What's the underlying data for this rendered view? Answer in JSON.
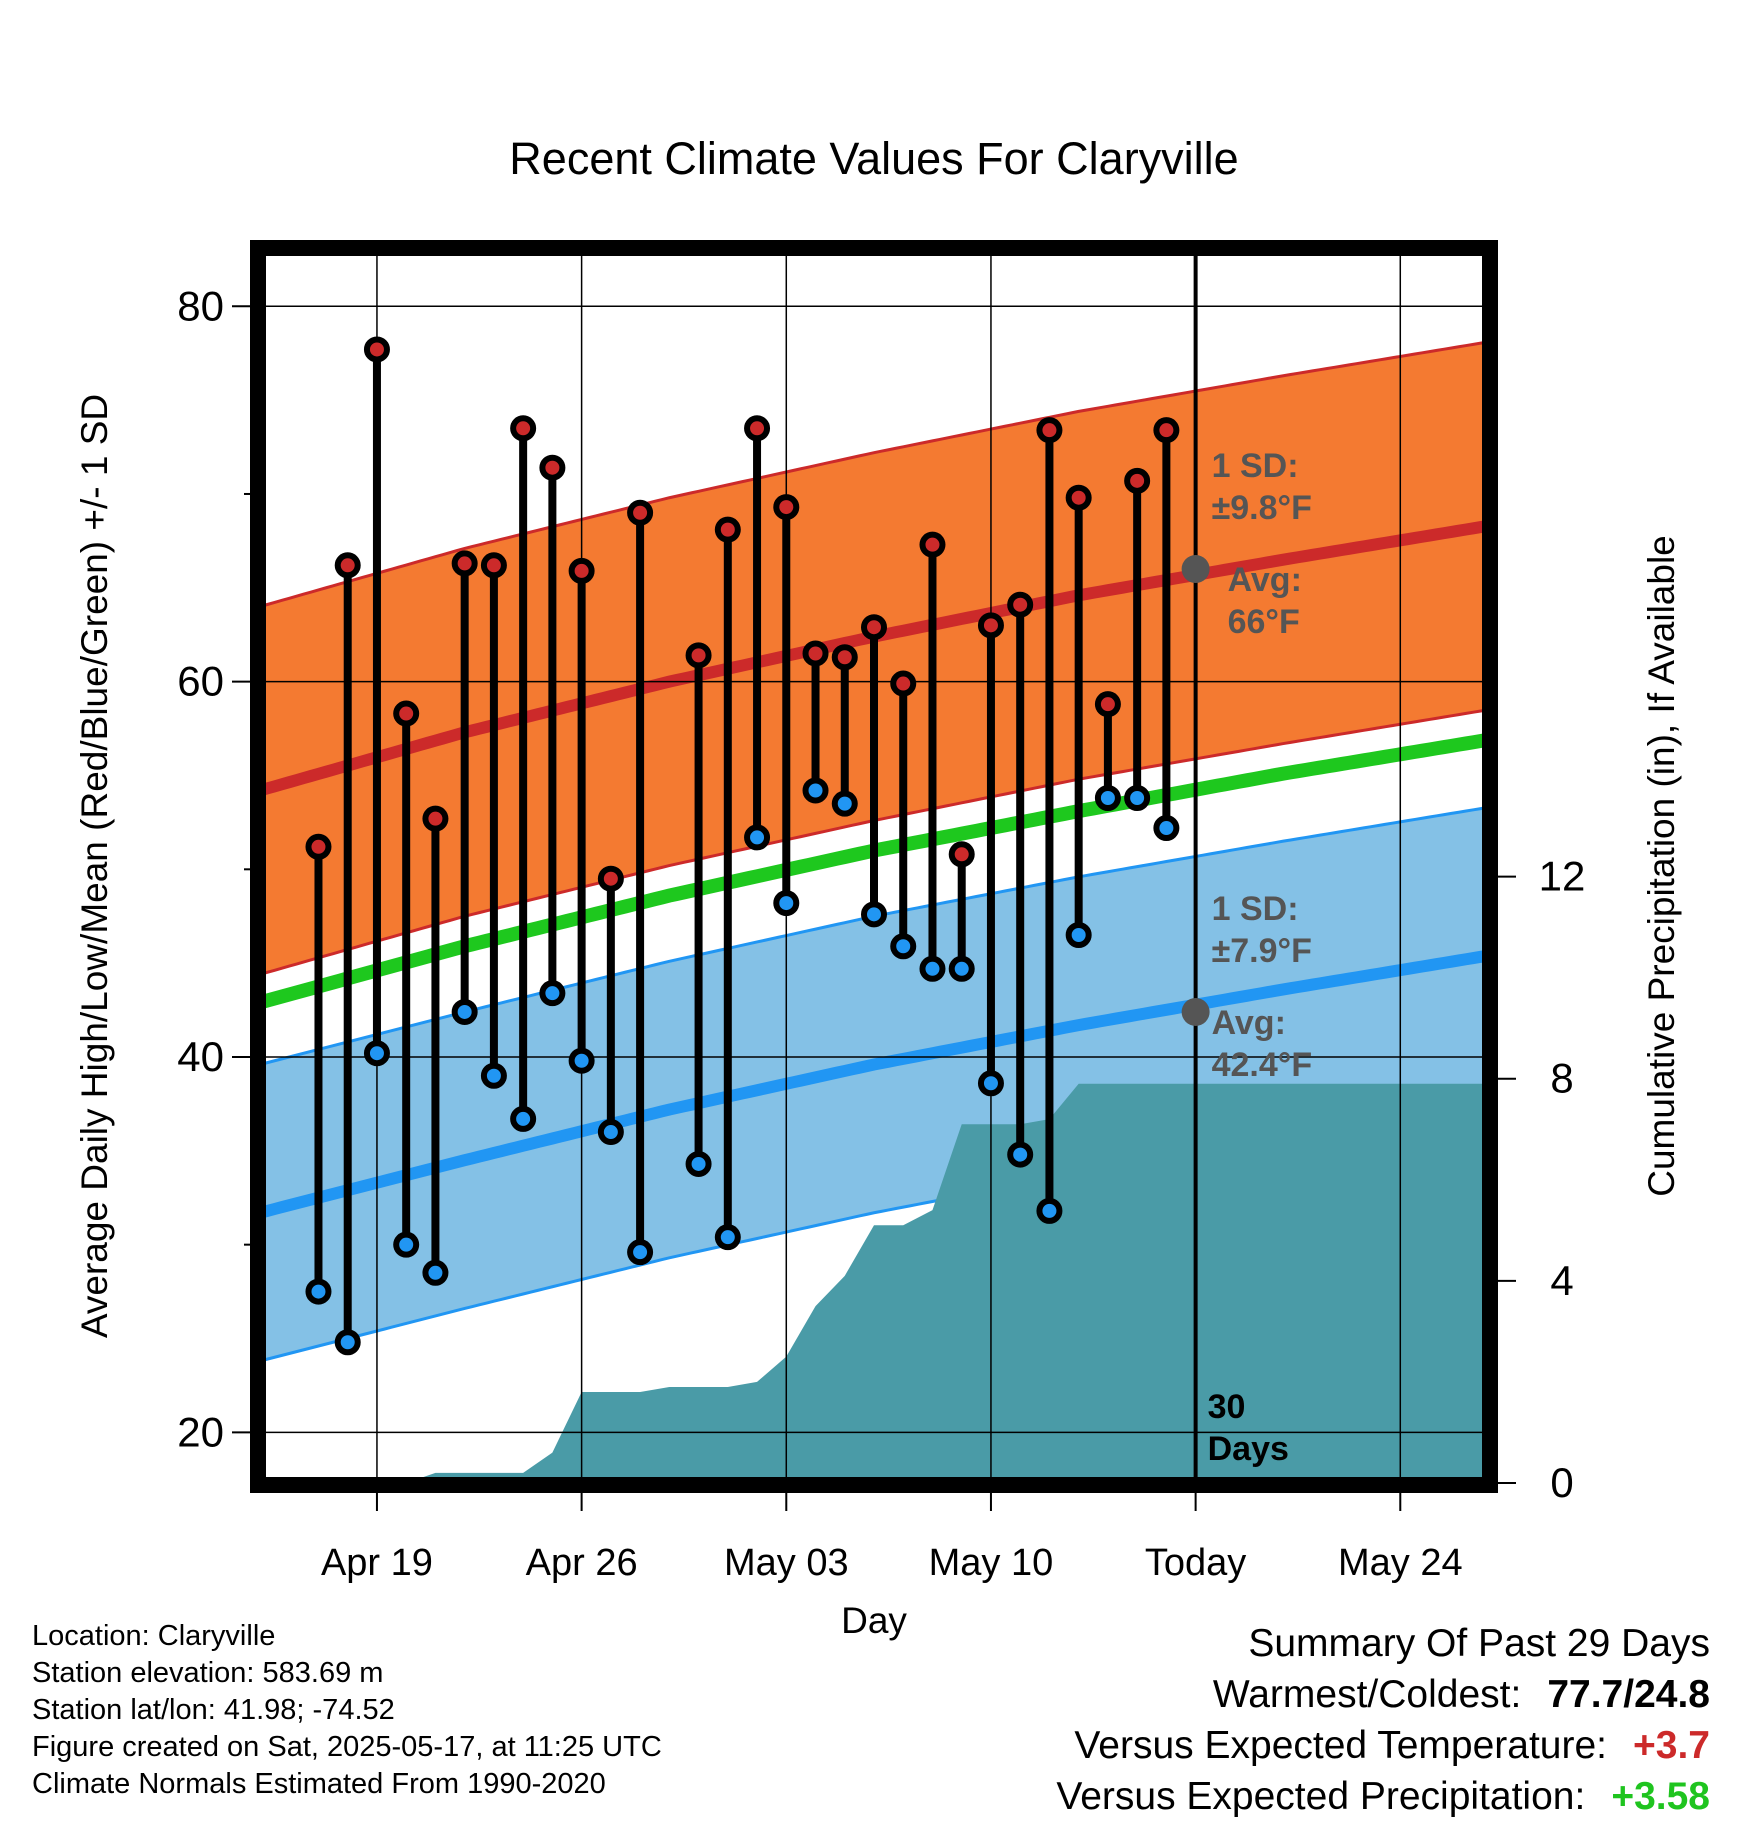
{
  "chart_data": {
    "type": "line",
    "title": "Recent Climate Values For Claryville",
    "xlabel": "Day",
    "ylabel": "Average Daily High/Low/Mean (Red/Blue/Green) +/- 1 SD",
    "y2label": "Cumulative Precipitation (in), If Available",
    "ylim": [
      17.3,
      83.0
    ],
    "y2lim": [
      0,
      24.4
    ],
    "yticks": [
      20,
      40,
      60,
      80
    ],
    "y2ticks": [
      0,
      4,
      8,
      12
    ],
    "xlim": [
      "2025-04-15",
      "2025-05-27"
    ],
    "xticks": [
      {
        "date": "2025-04-19",
        "label": "Apr 19"
      },
      {
        "date": "2025-04-26",
        "label": "Apr 26"
      },
      {
        "date": "2025-05-03",
        "label": "May 03"
      },
      {
        "date": "2025-05-10",
        "label": "May 10"
      },
      {
        "date": "2025-05-17",
        "label": "Today"
      },
      {
        "date": "2025-05-24",
        "label": "May 24"
      }
    ],
    "grid": true,
    "normals": {
      "dates": [
        "2025-04-15",
        "2025-04-22",
        "2025-04-29",
        "2025-05-06",
        "2025-05-13",
        "2025-05-20",
        "2025-05-27"
      ],
      "avg_high": [
        54.2,
        57.3,
        60.0,
        62.4,
        64.6,
        66.5,
        68.3
      ],
      "avg_low": [
        31.7,
        34.5,
        37.2,
        39.6,
        41.7,
        43.6,
        45.4
      ],
      "avg_mean": [
        42.9,
        45.9,
        48.6,
        51.0,
        53.1,
        55.1,
        56.9
      ],
      "high_sd": 9.8,
      "low_sd": 7.9
    },
    "series": [
      {
        "name": "High",
        "color": "#cc2a2a",
        "x": [
          "2025-04-17",
          "2025-04-18",
          "2025-04-19",
          "2025-04-20",
          "2025-04-21",
          "2025-04-22",
          "2025-04-23",
          "2025-04-24",
          "2025-04-25",
          "2025-04-26",
          "2025-04-27",
          "2025-04-28",
          "2025-04-30",
          "2025-05-01",
          "2025-05-02",
          "2025-05-03",
          "2025-05-04",
          "2025-05-05",
          "2025-05-06",
          "2025-05-07",
          "2025-05-08",
          "2025-05-09",
          "2025-05-10",
          "2025-05-11",
          "2025-05-12",
          "2025-05-13",
          "2025-05-14",
          "2025-05-15",
          "2025-05-16"
        ],
        "values": [
          51.2,
          66.2,
          77.7,
          58.3,
          52.7,
          66.3,
          66.2,
          73.5,
          71.4,
          65.9,
          49.5,
          69.0,
          61.4,
          68.1,
          73.5,
          69.3,
          61.5,
          61.3,
          62.9,
          59.9,
          67.3,
          50.8,
          63.0,
          64.1,
          73.4,
          69.8,
          58.8,
          70.7,
          73.4
        ]
      },
      {
        "name": "Low",
        "color": "#2196f3",
        "x": [
          "2025-04-17",
          "2025-04-18",
          "2025-04-19",
          "2025-04-20",
          "2025-04-21",
          "2025-04-22",
          "2025-04-23",
          "2025-04-24",
          "2025-04-25",
          "2025-04-26",
          "2025-04-27",
          "2025-04-28",
          "2025-04-30",
          "2025-05-01",
          "2025-05-02",
          "2025-05-03",
          "2025-05-04",
          "2025-05-05",
          "2025-05-06",
          "2025-05-07",
          "2025-05-08",
          "2025-05-09",
          "2025-05-10",
          "2025-05-11",
          "2025-05-12",
          "2025-05-13",
          "2025-05-14",
          "2025-05-15",
          "2025-05-16"
        ],
        "values": [
          27.5,
          24.8,
          40.2,
          30.0,
          28.5,
          42.4,
          39.0,
          36.7,
          43.4,
          39.8,
          36.0,
          29.6,
          34.3,
          30.4,
          51.7,
          48.2,
          54.2,
          53.5,
          47.6,
          45.9,
          44.7,
          44.7,
          38.6,
          34.8,
          31.8,
          46.5,
          53.8,
          53.8,
          52.2
        ]
      }
    ],
    "precip_cumulative": {
      "x": [
        "2025-04-16",
        "2025-04-17",
        "2025-04-18",
        "2025-04-19",
        "2025-04-20",
        "2025-04-21",
        "2025-04-22",
        "2025-04-23",
        "2025-04-24",
        "2025-04-25",
        "2025-04-26",
        "2025-04-27",
        "2025-04-28",
        "2025-04-29",
        "2025-04-30",
        "2025-05-01",
        "2025-05-02",
        "2025-05-03",
        "2025-05-04",
        "2025-05-05",
        "2025-05-06",
        "2025-05-07",
        "2025-05-08",
        "2025-05-09",
        "2025-05-10",
        "2025-05-11",
        "2025-05-12",
        "2025-05-13",
        "2025-05-14",
        "2025-05-17",
        "2025-05-27"
      ],
      "values": [
        0.0,
        0.0,
        0.0,
        0.0,
        0.0,
        0.2,
        0.2,
        0.2,
        0.2,
        0.6,
        1.8,
        1.8,
        1.8,
        1.9,
        1.9,
        1.9,
        2.0,
        2.5,
        3.5,
        4.1,
        5.1,
        5.1,
        5.4,
        7.1,
        7.1,
        7.1,
        7.2,
        7.9,
        7.9,
        7.9,
        7.9
      ],
      "color": "#4a9ba7"
    },
    "annotations": {
      "high_sd": "1 SD: ±9.8°F",
      "high_avg": "Avg: 66°F",
      "low_sd": "1 SD: ±7.9°F",
      "low_avg": "Avg: 42.4°F",
      "window": "30 Days",
      "marker_date": "2025-05-17",
      "high_avg_value": 66.0,
      "low_avg_value": 42.4
    },
    "band_colors": {
      "high_band": "#f47a31",
      "high_line": "#cc2a2a",
      "low_band": "#84c1e6",
      "low_line": "#2196f3",
      "mean_line": "#1ec81e"
    }
  },
  "info": {
    "location": "Location: Claryville",
    "elevation": "Station elevation: 583.69 m",
    "latlon": "Station lat/lon: 41.98; -74.52",
    "created": "Figure created on Sat, 2025-05-17, at 11:25 UTC",
    "normals": "Climate Normals Estimated From 1990-2020"
  },
  "summary": {
    "title": "Summary Of Past 29 Days",
    "warm_label": "Warmest/Coldest:",
    "warm_value": "77.7/24.8",
    "temp_label": "Versus Expected Temperature:",
    "temp_value": "+3.7",
    "precip_label": "Versus Expected Precipitation:",
    "precip_value": "+3.58"
  }
}
